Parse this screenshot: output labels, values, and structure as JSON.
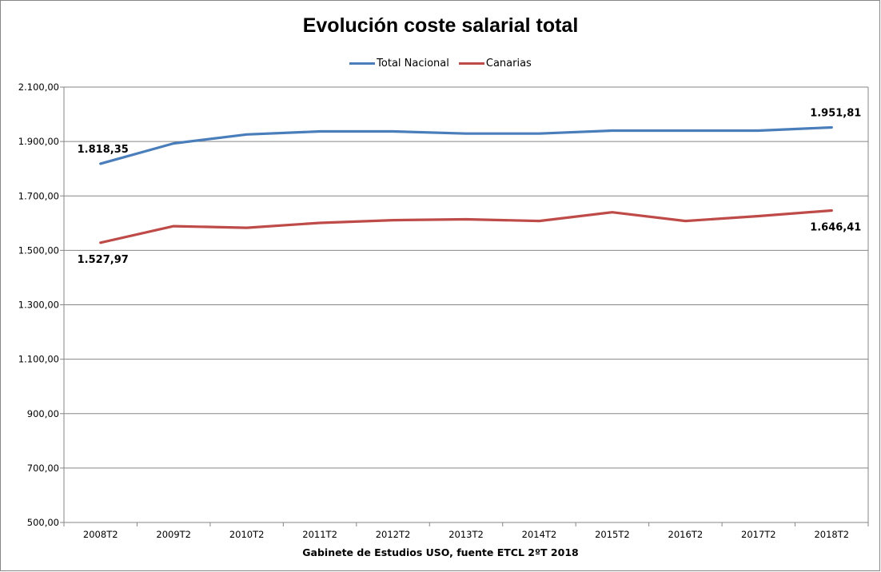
{
  "chart_data": {
    "type": "line",
    "title": "Evolución coste salarial total",
    "xlabel": "Gabinete de Estudios USO, fuente ETCL 2ºT 2018",
    "ylabel": "",
    "ylim": [
      500,
      2100
    ],
    "yticks": [
      "500,00",
      "700,00",
      "900,00",
      "1.100,00",
      "1.300,00",
      "1.500,00",
      "1.700,00",
      "1.900,00",
      "2.100,00"
    ],
    "categories": [
      "2008T2",
      "2009T2",
      "2010T2",
      "2011T2",
      "2012T2",
      "2013T2",
      "2014T2",
      "2015T2",
      "2016T2",
      "2017T2",
      "2018T2"
    ],
    "grid": true,
    "legend_position": "top",
    "series": [
      {
        "name": "Total Nacional",
        "color": "#4a7ebb",
        "values": [
          1818.35,
          1893,
          1926,
          1937,
          1937,
          1929,
          1929,
          1940,
          1940,
          1940,
          1951.81
        ]
      },
      {
        "name": "Canarias",
        "color": "#be4b48",
        "values": [
          1527.97,
          1589,
          1583,
          1601,
          1611,
          1614,
          1608,
          1640,
          1608,
          1626,
          1646.41
        ]
      }
    ],
    "data_labels": [
      {
        "series": 0,
        "index": 0,
        "text": "1.818,35",
        "position": "above"
      },
      {
        "series": 0,
        "index": 10,
        "text": "1.951,81",
        "position": "above"
      },
      {
        "series": 1,
        "index": 0,
        "text": "1.527,97",
        "position": "below"
      },
      {
        "series": 1,
        "index": 10,
        "text": "1.646,41",
        "position": "below"
      }
    ]
  }
}
